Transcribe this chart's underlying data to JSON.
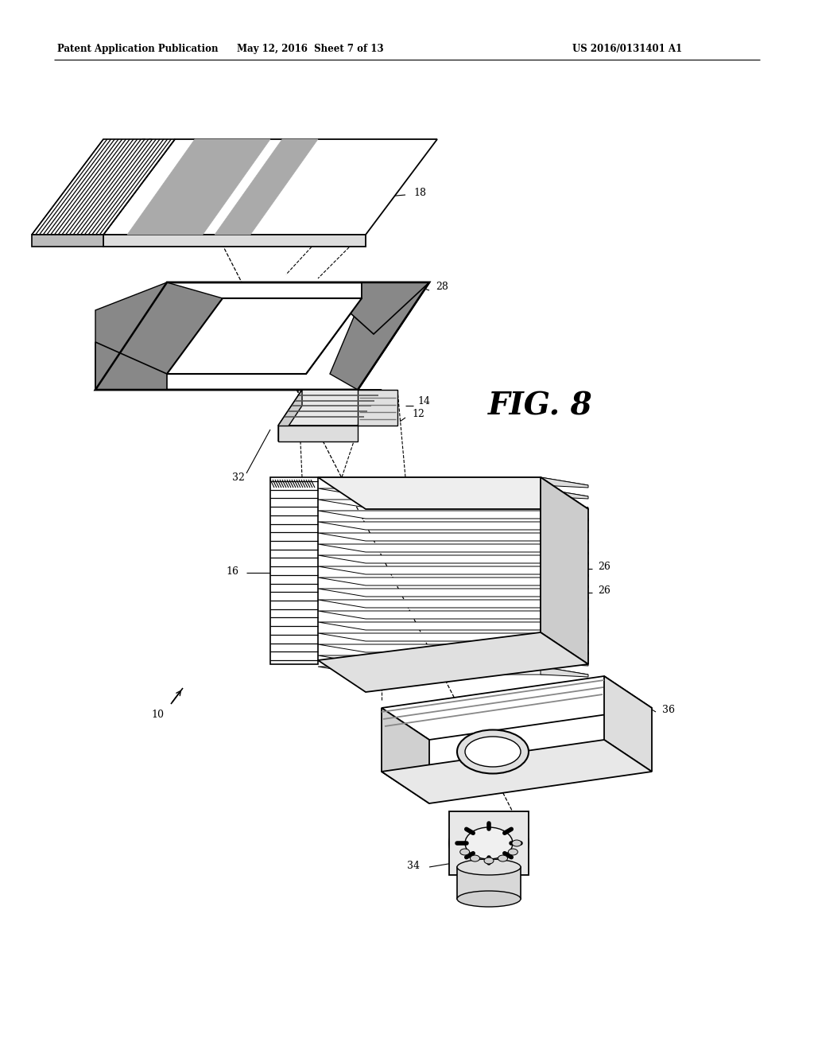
{
  "header_left": "Patent Application Publication",
  "header_center": "May 12, 2016  Sheet 7 of 13",
  "header_right": "US 2016/0131401 A1",
  "fig_label": "FIG. 8",
  "background_color": "#ffffff"
}
